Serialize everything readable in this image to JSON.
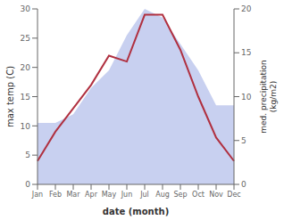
{
  "chart_data": {
    "type": "combo",
    "categories": [
      "Jan",
      "Feb",
      "Mar",
      "Apr",
      "May",
      "Jun",
      "Jul",
      "Aug",
      "Sep",
      "Oct",
      "Nov",
      "Dec"
    ],
    "xlabel": "date (month)",
    "ylabel": "max temp (C)",
    "y2label": "med. precipitation\n(kg/m2)",
    "series": [
      {
        "type": "area",
        "axis": "y2",
        "color": "#c8d0f0",
        "values": [
          7,
          7,
          8,
          11,
          13,
          17,
          20,
          19,
          16,
          13,
          9,
          9
        ]
      },
      {
        "type": "line",
        "axis": "y",
        "color": "#b03040",
        "values": [
          4,
          9,
          13,
          17,
          22,
          21,
          29,
          29,
          23,
          15,
          8,
          4
        ]
      }
    ],
    "ylim": [
      0,
      30
    ],
    "yticks": [
      0,
      5,
      10,
      15,
      20,
      25,
      30
    ],
    "y2lim": [
      0,
      20
    ],
    "y2ticks": [
      0,
      5,
      10,
      15,
      20
    ],
    "grid": false
  }
}
